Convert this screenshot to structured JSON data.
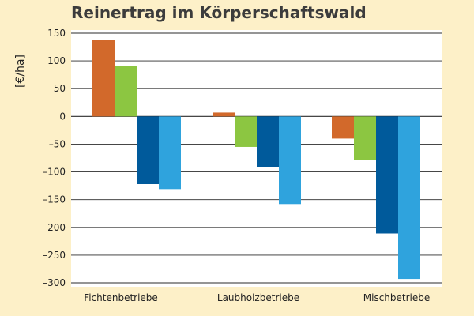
{
  "chart_data": {
    "type": "bar",
    "title": "Reinertrag im Körperschaftswald",
    "ylabel": "[€/ha]",
    "xlabel": "",
    "categories": [
      "Fichtenbetriebe",
      "Laubholzbetriebe",
      "Mischbetriebe"
    ],
    "series": [
      {
        "color": "#d2692b",
        "values": [
          138,
          7,
          -40
        ]
      },
      {
        "color": "#8cc641",
        "values": [
          91,
          -55,
          -79
        ]
      },
      {
        "color": "#005a9b",
        "values": [
          -122,
          -92,
          -211
        ]
      },
      {
        "color": "#2fa3dd",
        "values": [
          -131,
          -158,
          -293
        ]
      }
    ],
    "ylim": [
      -300,
      150
    ],
    "yticks": [
      150,
      100,
      50,
      0,
      -50,
      -100,
      -150,
      -200,
      -250,
      -300
    ],
    "ytick_labels": [
      "150",
      "100",
      "50",
      "0",
      "–50",
      "–100",
      "–150",
      "–200",
      "–250",
      "–300"
    ],
    "grid": true,
    "legend": "none"
  }
}
